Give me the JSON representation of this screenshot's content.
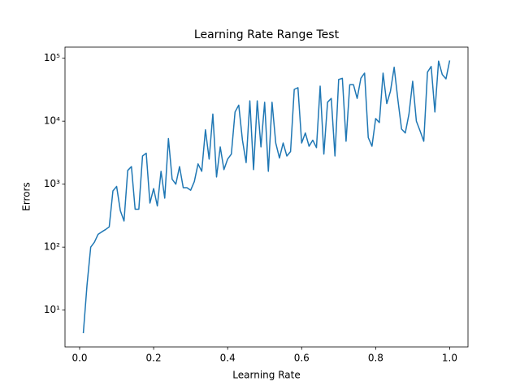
{
  "chart_data": {
    "type": "line",
    "title": "Learning Rate Range Test",
    "x_label": "Learning Rate",
    "y_label": "Errors",
    "x": [
      0.01,
      0.02,
      0.03,
      0.04,
      0.05,
      0.06,
      0.07,
      0.08,
      0.09,
      0.1,
      0.11,
      0.12,
      0.13,
      0.14,
      0.15,
      0.16,
      0.17,
      0.18,
      0.19,
      0.2,
      0.21,
      0.22,
      0.23,
      0.24,
      0.25,
      0.26,
      0.27,
      0.28,
      0.29,
      0.3,
      0.31,
      0.32,
      0.33,
      0.34,
      0.35,
      0.36,
      0.37,
      0.38,
      0.39,
      0.4,
      0.41,
      0.42,
      0.43,
      0.44,
      0.45,
      0.46,
      0.47,
      0.48,
      0.49,
      0.5,
      0.51,
      0.52,
      0.53,
      0.54,
      0.55,
      0.56,
      0.57,
      0.58,
      0.59,
      0.6,
      0.61,
      0.62,
      0.63,
      0.64,
      0.65,
      0.66,
      0.67,
      0.68,
      0.69,
      0.7,
      0.71,
      0.72,
      0.73,
      0.74,
      0.75,
      0.76,
      0.77,
      0.78,
      0.79,
      0.8,
      0.81,
      0.82,
      0.83,
      0.84,
      0.85,
      0.86,
      0.87,
      0.88,
      0.89,
      0.9,
      0.91,
      0.92,
      0.93,
      0.94,
      0.95,
      0.96,
      0.97,
      0.98,
      0.99,
      1.0
    ],
    "values": [
      4.3,
      25,
      100,
      120,
      160,
      175,
      190,
      210,
      780,
      920,
      380,
      260,
      1650,
      1900,
      400,
      400,
      2800,
      3100,
      500,
      850,
      450,
      1600,
      600,
      5300,
      1200,
      1000,
      1900,
      880,
      880,
      800,
      1100,
      2100,
      1600,
      7300,
      2500,
      13000,
      1300,
      3900,
      1700,
      2500,
      3000,
      14000,
      18000,
      5000,
      2200,
      21000,
      1700,
      21000,
      3900,
      20000,
      1600,
      20000,
      4500,
      2600,
      4500,
      2800,
      3300,
      32000,
      34000,
      4500,
      6500,
      4000,
      5000,
      3800,
      36000,
      3000,
      20000,
      23000,
      2800,
      46000,
      48000,
      4800,
      38000,
      38000,
      23000,
      48000,
      58000,
      5500,
      4000,
      11000,
      9500,
      58000,
      19000,
      30000,
      72000,
      22000,
      7500,
      6500,
      13000,
      43000,
      10000,
      7000,
      4800,
      60000,
      74000,
      14000,
      90000,
      55000,
      47000,
      92000
    ],
    "color": "#1f77b4",
    "xlim": [
      -0.0395,
      1.0495
    ],
    "xticks": [
      {
        "value": 0,
        "label": "0.0"
      },
      0.2,
      0.4,
      0.6,
      0.8,
      {
        "value": 1,
        "label": "1.0"
      }
    ],
    "ylim": [
      2.6,
      150000
    ],
    "y_scale": "log",
    "yticks": [
      {
        "value": 10,
        "label": "10¹"
      },
      {
        "value": 100,
        "label": "10²"
      },
      {
        "value": 1000,
        "label": "10³"
      },
      {
        "value": 10000,
        "label": "10⁴"
      },
      {
        "value": 100000,
        "label": "10⁵"
      }
    ]
  }
}
